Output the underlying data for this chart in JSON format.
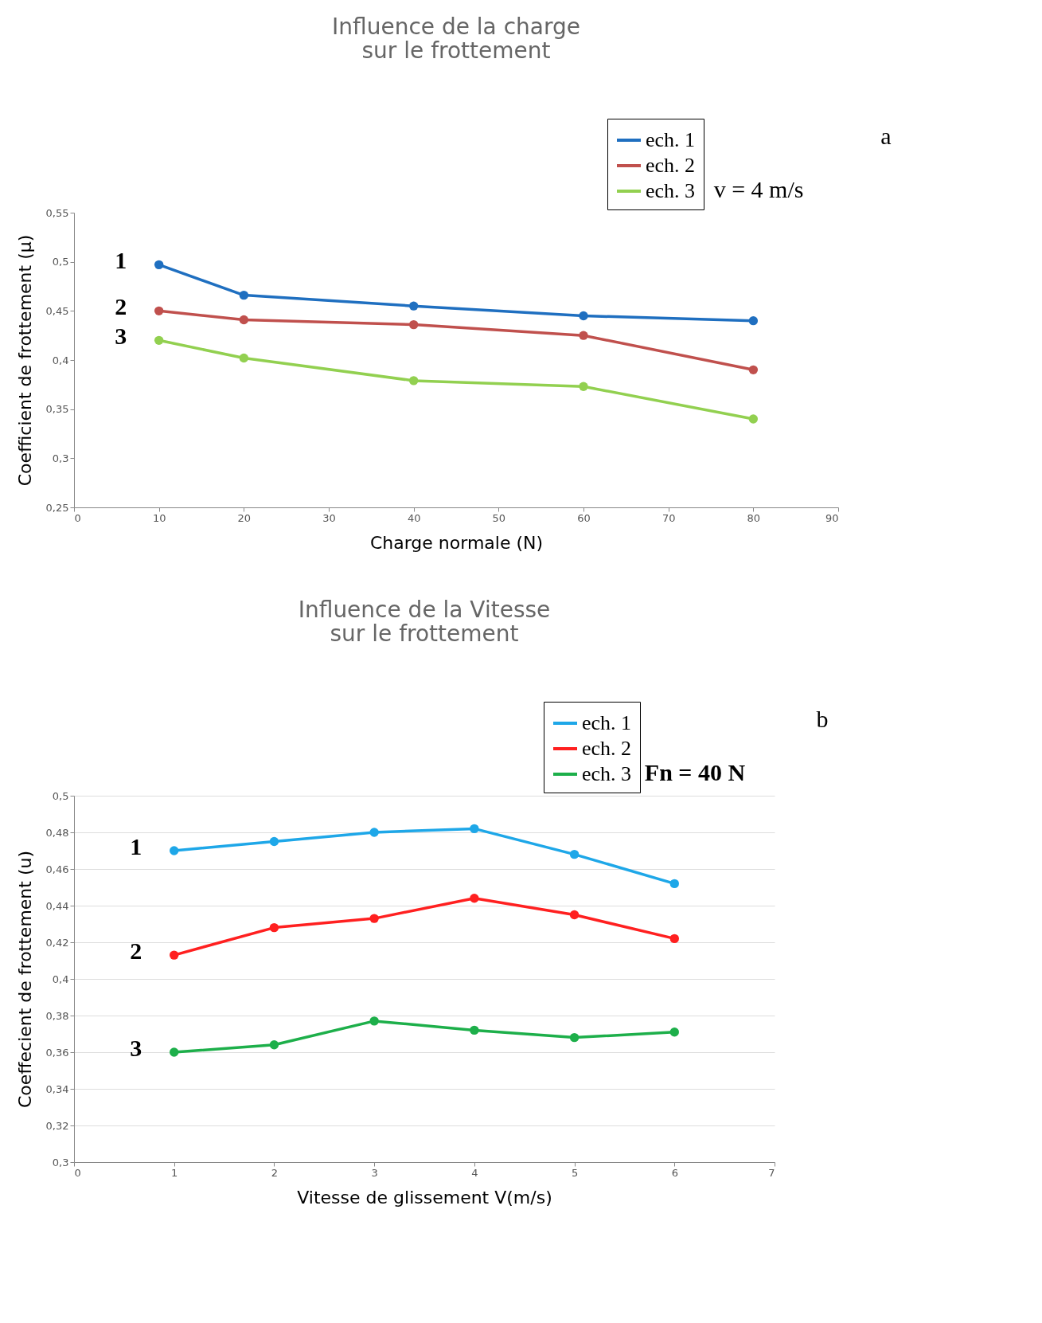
{
  "chart_data": [
    {
      "type": "line",
      "title": "Influence de la charge\nsur le frottement",
      "xlabel": "Charge normale (N)",
      "ylabel": "Coefficient de frottement (µ)",
      "x": [
        10,
        20,
        40,
        60,
        80
      ],
      "series": [
        {
          "name": "ech. 1",
          "color": "#1f6fc0",
          "values": [
            0.497,
            0.466,
            0.455,
            0.445,
            0.44
          ]
        },
        {
          "name": "ech. 2",
          "color": "#c0504d",
          "values": [
            0.45,
            0.441,
            0.436,
            0.425,
            0.39
          ]
        },
        {
          "name": "ech. 3",
          "color": "#92d050",
          "values": [
            0.42,
            0.402,
            0.379,
            0.373,
            0.34
          ]
        }
      ],
      "xlim": [
        0,
        90
      ],
      "xticks": [
        0,
        10,
        20,
        30,
        40,
        50,
        60,
        70,
        80,
        90
      ],
      "ylim": [
        0.25,
        0.55
      ],
      "yticks": [
        {
          "value": 0.25,
          "label": "0,25"
        },
        {
          "value": 0.3,
          "label": "0,3"
        },
        {
          "value": 0.35,
          "label": "0,35"
        },
        {
          "value": 0.4,
          "label": "0,4"
        },
        {
          "value": 0.45,
          "label": "0,45"
        },
        {
          "value": 0.5,
          "label": "0,5"
        },
        {
          "value": 0.55,
          "label": "0,55"
        }
      ],
      "annotations": [
        "1",
        "2",
        "3",
        "v = 4 m/s",
        "a"
      ],
      "grid": false,
      "legend": "top right",
      "marker": "circle",
      "line_style": "solid"
    },
    {
      "type": "line",
      "title": "Influence de la Vitesse\nsur le frottement",
      "xlabel": "Vitesse de glissement  V(m/s)",
      "ylabel": "Coeffecient de frottement (u)",
      "x": [
        1,
        2,
        3,
        4,
        5,
        6
      ],
      "series": [
        {
          "name": "ech. 1",
          "color": "#1ea7e8",
          "values": [
            0.47,
            0.475,
            0.48,
            0.482,
            0.468,
            0.452
          ]
        },
        {
          "name": "ech. 2",
          "color": "#ff2020",
          "values": [
            0.413,
            0.428,
            0.433,
            0.444,
            0.435,
            0.422
          ]
        },
        {
          "name": "ech. 3",
          "color": "#1daf4a",
          "values": [
            0.36,
            0.364,
            0.377,
            0.372,
            0.368,
            0.371
          ]
        }
      ],
      "xlim": [
        0,
        7
      ],
      "xticks": [
        0,
        1,
        2,
        3,
        4,
        5,
        6,
        7
      ],
      "ylim": [
        0.3,
        0.5
      ],
      "yticks": [
        {
          "value": 0.3,
          "label": "0,3"
        },
        {
          "value": 0.32,
          "label": "0,32"
        },
        {
          "value": 0.34,
          "label": "0,34"
        },
        {
          "value": 0.36,
          "label": "0,36"
        },
        {
          "value": 0.38,
          "label": "0,38"
        },
        {
          "value": 0.4,
          "label": "0,4"
        },
        {
          "value": 0.42,
          "label": "0,42"
        },
        {
          "value": 0.44,
          "label": "0,44"
        },
        {
          "value": 0.46,
          "label": "0,46"
        },
        {
          "value": 0.48,
          "label": "0,48"
        },
        {
          "value": 0.5,
          "label": "0,5"
        }
      ],
      "annotations": [
        "1",
        "2",
        "3",
        "Fn = 40 N",
        "b"
      ],
      "grid": "y",
      "legend": "top right",
      "marker": "circle",
      "line_style": "solid"
    }
  ]
}
